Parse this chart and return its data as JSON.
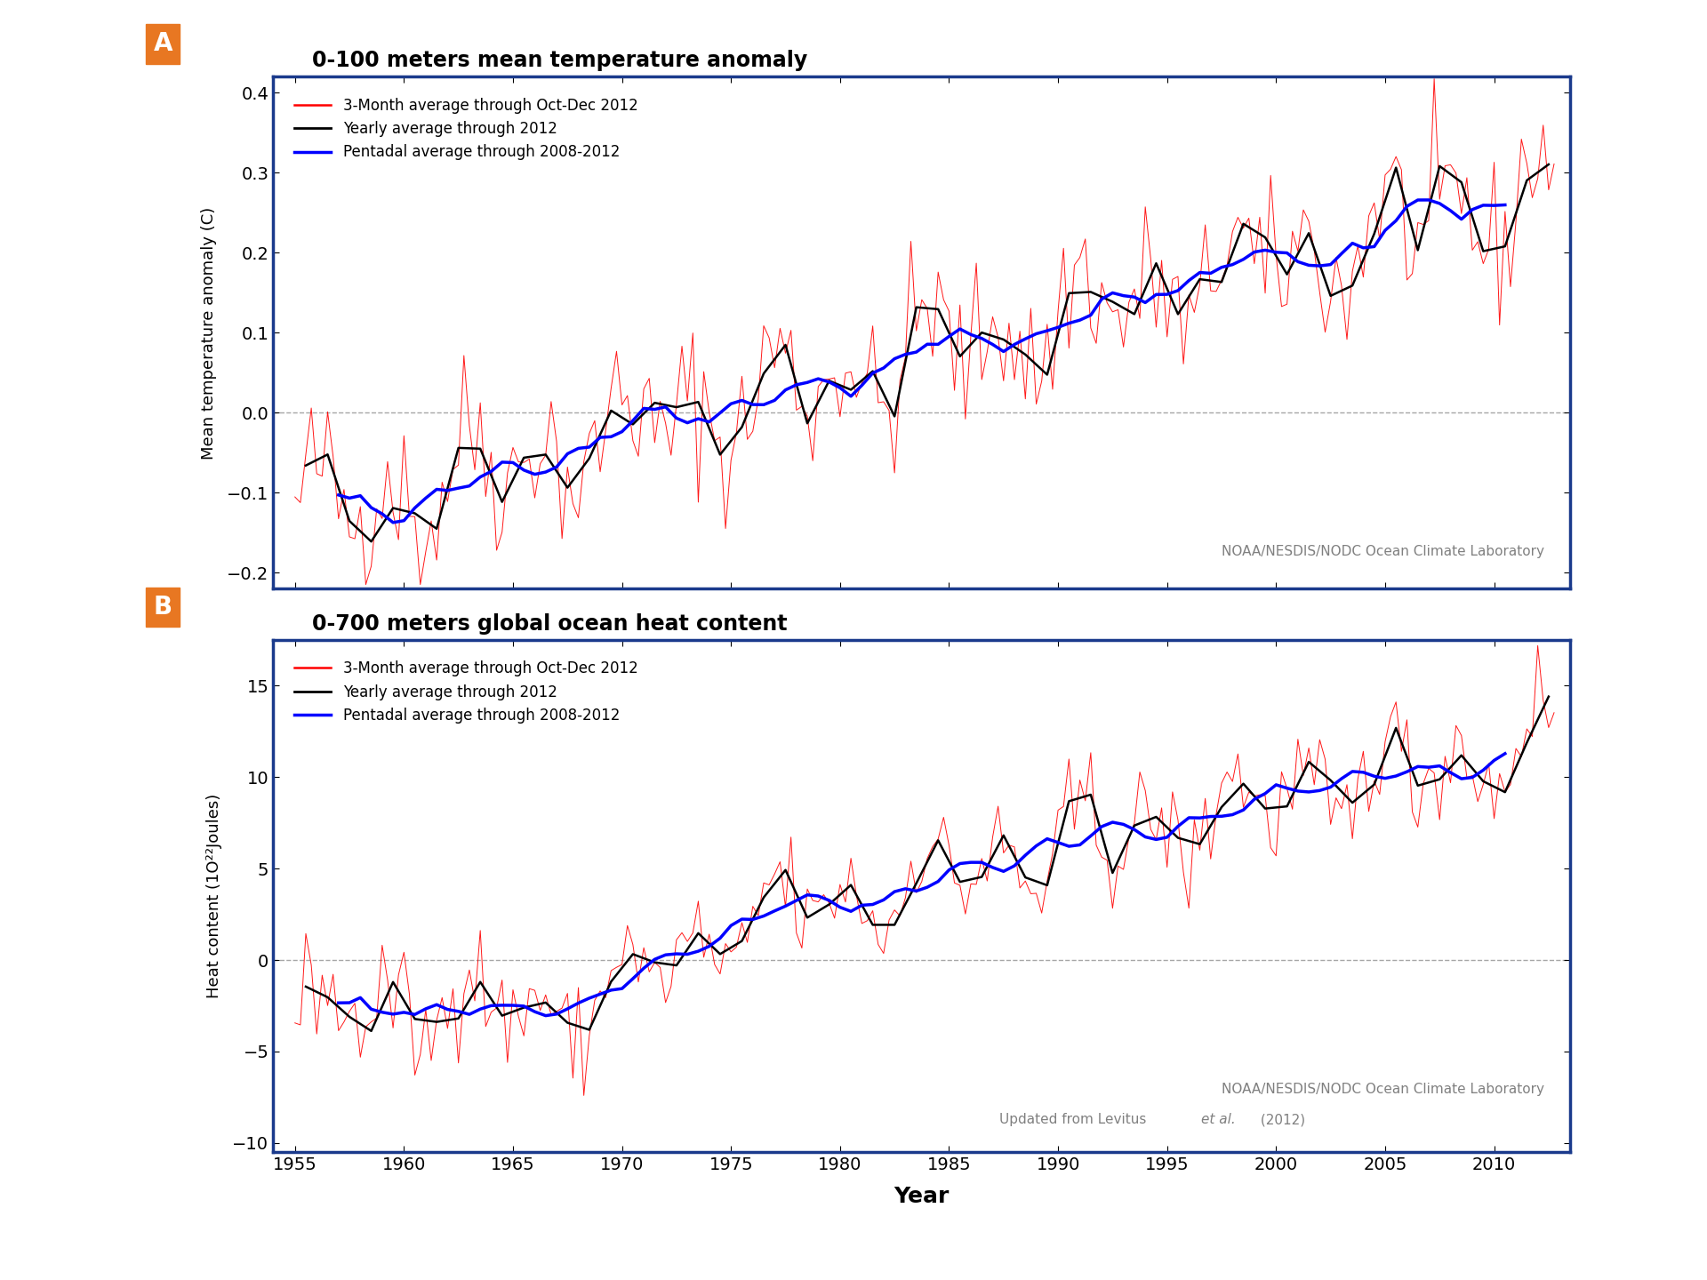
{
  "title_a": "0-100 meters mean temperature anomaly",
  "title_b": "0-700 meters global ocean heat content",
  "ylabel_a": "Mean temperature anomaly (C)",
  "ylabel_b": "Heat content (1O²²Joules)",
  "xlabel": "Year",
  "legend_red": "3-Month average through Oct-Dec 2012",
  "legend_black": "Yearly average through 2012",
  "legend_blue": "Pentadal average through 2008-2012",
  "note_a": "NOAA/NESDIS/NODC Ocean Climate Laboratory",
  "note_b1": "NOAA/NESDIS/NODC Ocean Climate Laboratory",
  "note_b2_pre": "Updated from Levitus ",
  "note_b2_etal": "et al.",
  "note_b2_post": " (2012)",
  "label_a": "A",
  "label_b": "B",
  "xlim": [
    1954,
    2013.5
  ],
  "ylim_a": [
    -0.22,
    0.42
  ],
  "ylim_b": [
    -10.5,
    17.5
  ],
  "yticks_a": [
    -0.2,
    -0.1,
    0.0,
    0.1,
    0.2,
    0.3,
    0.4
  ],
  "yticks_b": [
    -10,
    -5,
    0,
    5,
    10,
    15
  ],
  "xticks": [
    1955,
    1960,
    1965,
    1970,
    1975,
    1980,
    1985,
    1990,
    1995,
    2000,
    2005,
    2010
  ],
  "background_color": "#ffffff",
  "panel_border_color": "#1a3a8c",
  "label_bg_color": "#E87722",
  "label_text_color": "#ffffff"
}
